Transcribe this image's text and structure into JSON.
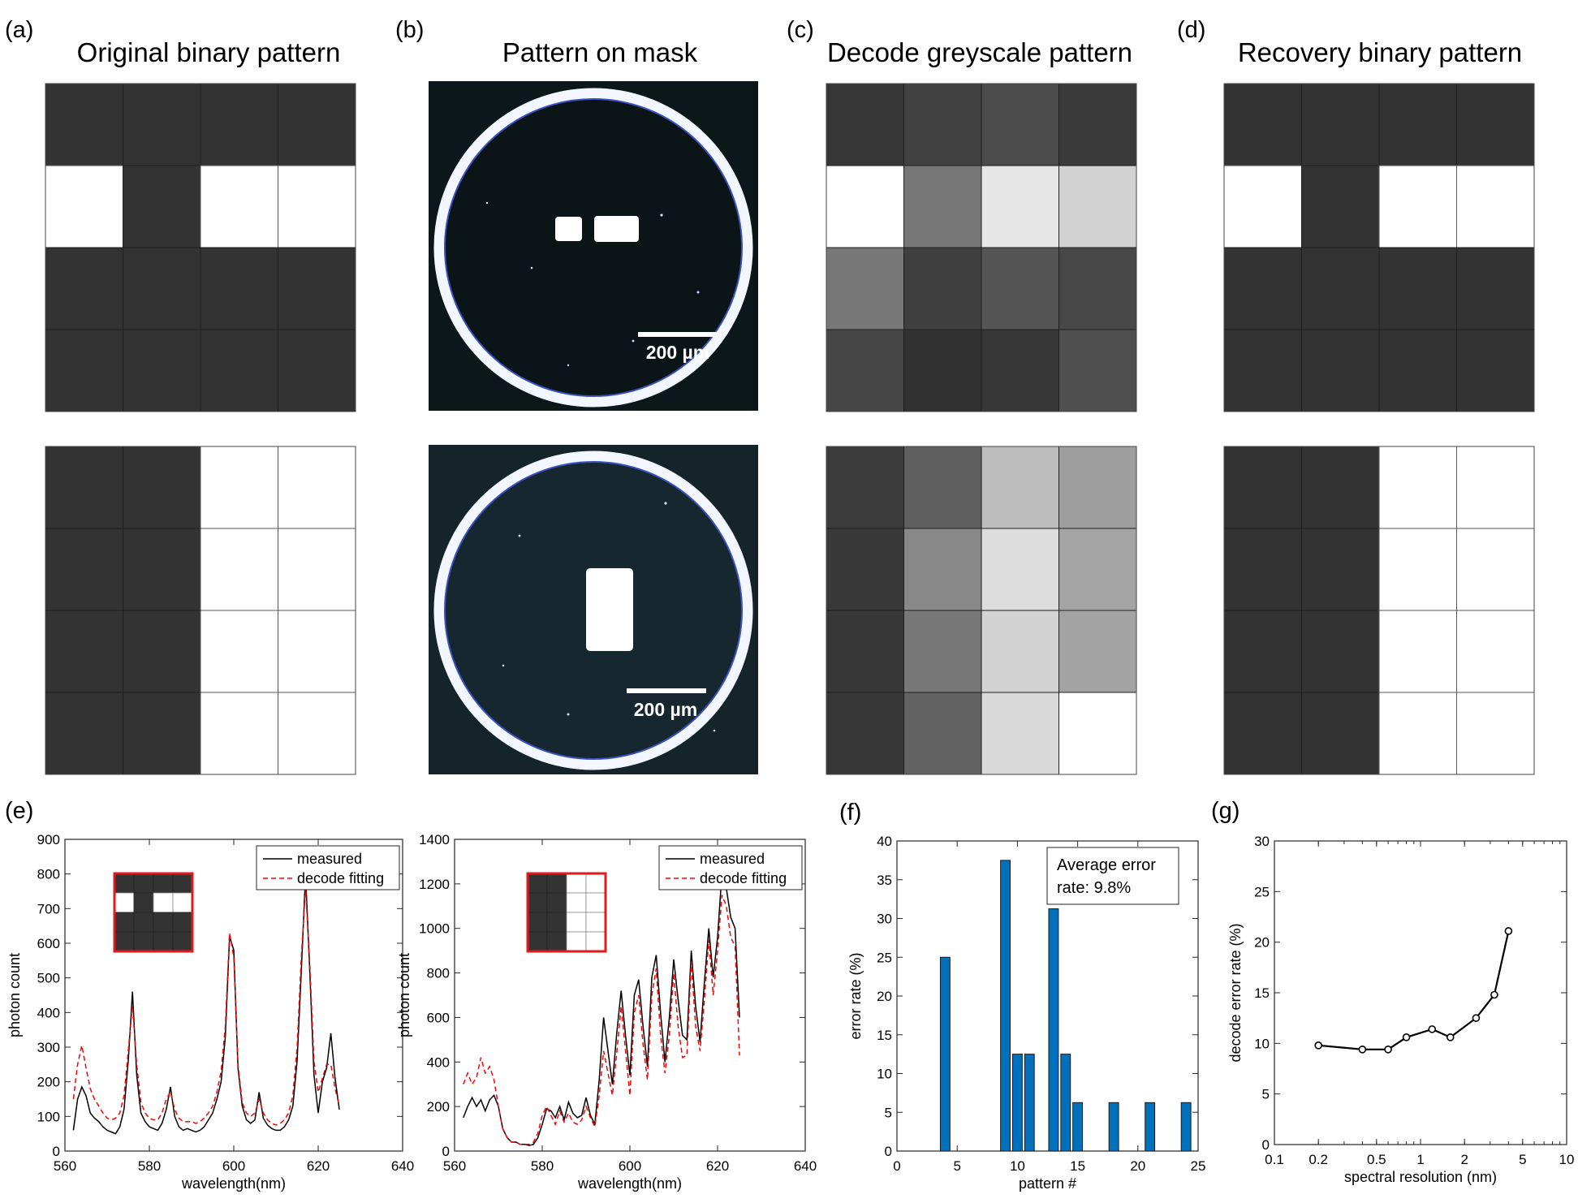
{
  "figure": {
    "panels": [
      {
        "letter": "(a)",
        "title": "Original binary pattern"
      },
      {
        "letter": "(b)",
        "title": "Pattern on mask"
      },
      {
        "letter": "(c)",
        "title": "Decode greyscale pattern"
      },
      {
        "letter": "(d)",
        "title": "Recovery binary pattern"
      }
    ],
    "lower_panels": [
      "(e)",
      "(f)",
      "(g)"
    ],
    "scale_bar_label": "200 µm",
    "colors": {
      "dark_cell": "#333333",
      "bar_blue": "#0072bd",
      "fit_red": "#ff0000",
      "inset_red": "#e31a1c"
    },
    "grids": {
      "original_top": [
        [
          0,
          0,
          0,
          0
        ],
        [
          1,
          0,
          1,
          1
        ],
        [
          0,
          0,
          0,
          0
        ],
        [
          0,
          0,
          0,
          0
        ]
      ],
      "original_bottom": [
        [
          0,
          0,
          1,
          1
        ],
        [
          0,
          0,
          1,
          1
        ],
        [
          0,
          0,
          1,
          1
        ],
        [
          0,
          0,
          1,
          1
        ]
      ],
      "decode_top": [
        [
          "#363636",
          "#414141",
          "#4b4b4b",
          "#3a3a3a"
        ],
        [
          "#ffffff",
          "#777777",
          "#e6e6e6",
          "#d2d2d2"
        ],
        [
          "#787878",
          "#3f3f3f",
          "#555555",
          "#484848"
        ],
        [
          "#464646",
          "#323232",
          "#373737",
          "#4f4f4f"
        ]
      ],
      "decode_bottom": [
        [
          "#3c3c3c",
          "#5f5f5f",
          "#bdbdbd",
          "#9e9e9e"
        ],
        [
          "#393939",
          "#888888",
          "#dddddd",
          "#a4a4a4"
        ],
        [
          "#373737",
          "#777777",
          "#d3d3d3",
          "#a3a3a3"
        ],
        [
          "#373737",
          "#626262",
          "#d9d9d9",
          "#ffffff"
        ]
      ],
      "recovery_top": [
        [
          0,
          0,
          0,
          0
        ],
        [
          1,
          0,
          1,
          1
        ],
        [
          0,
          0,
          0,
          0
        ],
        [
          0,
          0,
          0,
          0
        ]
      ],
      "recovery_bottom": [
        [
          0,
          0,
          1,
          1
        ],
        [
          0,
          0,
          1,
          1
        ],
        [
          0,
          0,
          1,
          1
        ],
        [
          0,
          0,
          1,
          1
        ]
      ]
    }
  },
  "chart_data": [
    {
      "panel": "(e)",
      "type": "line",
      "xlabel": "wavelength(nm)",
      "ylabel": "photon count",
      "xlim": [
        560,
        640
      ],
      "ylim": [
        0,
        900
      ],
      "xticks": [
        "560",
        "580",
        "600",
        "620",
        "640"
      ],
      "yticks": [
        "0",
        "100",
        "200",
        "300",
        "400",
        "500",
        "600",
        "700",
        "800",
        "900"
      ],
      "legend": [
        "measured",
        "decode fitting"
      ],
      "series": [
        {
          "name": "measured",
          "x": [
            562,
            563,
            564,
            565,
            566,
            567,
            568,
            569,
            570,
            571,
            572,
            573,
            574,
            575,
            576,
            577,
            578,
            579,
            580,
            581,
            582,
            583,
            584,
            585,
            586,
            587,
            588,
            589,
            590,
            591,
            592,
            593,
            594,
            595,
            596,
            597,
            598,
            599,
            600,
            601,
            602,
            603,
            604,
            605,
            606,
            607,
            608,
            609,
            610,
            611,
            612,
            613,
            614,
            615,
            616,
            617,
            618,
            619,
            620,
            621,
            622,
            623,
            624,
            625
          ],
          "y": [
            60,
            150,
            185,
            160,
            110,
            95,
            85,
            70,
            60,
            55,
            50,
            70,
            120,
            260,
            460,
            220,
            110,
            85,
            70,
            65,
            60,
            80,
            120,
            185,
            100,
            70,
            60,
            65,
            60,
            55,
            60,
            70,
            90,
            110,
            150,
            200,
            330,
            620,
            580,
            240,
            130,
            90,
            80,
            90,
            170,
            95,
            75,
            65,
            60,
            60,
            70,
            90,
            130,
            260,
            520,
            800,
            520,
            220,
            110,
            200,
            240,
            340,
            210,
            120
          ]
        },
        {
          "name": "decode fitting",
          "x": [
            562,
            563,
            564,
            565,
            566,
            567,
            568,
            569,
            570,
            571,
            572,
            573,
            574,
            575,
            576,
            577,
            578,
            579,
            580,
            581,
            582,
            583,
            584,
            585,
            586,
            587,
            588,
            589,
            590,
            591,
            592,
            593,
            594,
            595,
            596,
            597,
            598,
            599,
            600,
            601,
            602,
            603,
            604,
            605,
            606,
            607,
            608,
            609,
            610,
            611,
            612,
            613,
            614,
            615,
            616,
            617,
            618,
            619,
            620,
            621,
            622,
            623,
            624,
            625
          ],
          "y": [
            150,
            250,
            305,
            240,
            180,
            150,
            130,
            110,
            95,
            90,
            95,
            110,
            160,
            290,
            420,
            250,
            140,
            110,
            95,
            90,
            90,
            110,
            150,
            170,
            120,
            95,
            85,
            85,
            85,
            80,
            85,
            95,
            110,
            130,
            170,
            230,
            360,
            630,
            560,
            250,
            140,
            110,
            100,
            110,
            150,
            110,
            90,
            80,
            75,
            80,
            90,
            110,
            160,
            300,
            560,
            760,
            540,
            260,
            170,
            210,
            250,
            250,
            180,
            130
          ]
        }
      ],
      "inset_pattern": [
        [
          0,
          0,
          0,
          0
        ],
        [
          1,
          0,
          1,
          1
        ],
        [
          0,
          0,
          0,
          0
        ],
        [
          0,
          0,
          0,
          0
        ]
      ]
    },
    {
      "panel": "(e)",
      "type": "line",
      "xlabel": "wavelength(nm)",
      "ylabel": "photon count",
      "xlim": [
        560,
        640
      ],
      "ylim": [
        0,
        1400
      ],
      "xticks": [
        "560",
        "580",
        "600",
        "620",
        "640"
      ],
      "yticks": [
        "0",
        "200",
        "400",
        "600",
        "800",
        "1000",
        "1200",
        "1400"
      ],
      "legend": [
        "measured",
        "decode fitting"
      ],
      "series": [
        {
          "name": "measured",
          "x": [
            562,
            563,
            564,
            565,
            566,
            567,
            568,
            569,
            570,
            571,
            572,
            573,
            574,
            575,
            576,
            577,
            578,
            579,
            580,
            581,
            582,
            583,
            584,
            585,
            586,
            587,
            588,
            589,
            590,
            591,
            592,
            593,
            594,
            595,
            596,
            597,
            598,
            599,
            600,
            601,
            602,
            603,
            604,
            605,
            606,
            607,
            608,
            609,
            610,
            611,
            612,
            613,
            614,
            615,
            616,
            617,
            618,
            619,
            620,
            621,
            622,
            623,
            624,
            625
          ],
          "y": [
            150,
            200,
            240,
            200,
            230,
            180,
            230,
            250,
            200,
            100,
            60,
            40,
            40,
            30,
            30,
            25,
            30,
            60,
            120,
            190,
            180,
            150,
            200,
            140,
            220,
            170,
            150,
            160,
            240,
            160,
            120,
            320,
            600,
            450,
            300,
            530,
            720,
            520,
            340,
            700,
            770,
            560,
            380,
            780,
            880,
            620,
            400,
            600,
            860,
            680,
            520,
            500,
            900,
            650,
            490,
            760,
            1000,
            780,
            960,
            1250,
            1180,
            1050,
            1000,
            600
          ]
        },
        {
          "name": "decode fitting",
          "x": [
            562,
            563,
            564,
            565,
            566,
            567,
            568,
            569,
            570,
            571,
            572,
            573,
            574,
            575,
            576,
            577,
            578,
            579,
            580,
            581,
            582,
            583,
            584,
            585,
            586,
            587,
            588,
            589,
            590,
            591,
            592,
            593,
            594,
            595,
            596,
            597,
            598,
            599,
            600,
            601,
            602,
            603,
            604,
            605,
            606,
            607,
            608,
            609,
            610,
            611,
            612,
            613,
            614,
            615,
            616,
            617,
            618,
            619,
            620,
            621,
            622,
            623,
            624,
            625
          ],
          "y": [
            300,
            350,
            300,
            330,
            420,
            350,
            380,
            320,
            200,
            100,
            60,
            40,
            40,
            30,
            30,
            30,
            40,
            80,
            160,
            200,
            160,
            120,
            180,
            130,
            170,
            130,
            120,
            140,
            200,
            150,
            110,
            250,
            450,
            350,
            250,
            440,
            650,
            450,
            250,
            620,
            700,
            480,
            320,
            700,
            820,
            520,
            350,
            520,
            800,
            560,
            420,
            430,
            850,
            560,
            450,
            680,
            950,
            700,
            900,
            1150,
            1100,
            960,
            920,
            430
          ]
        }
      ],
      "inset_pattern": [
        [
          0,
          0,
          1,
          1
        ],
        [
          0,
          0,
          1,
          1
        ],
        [
          0,
          0,
          1,
          1
        ],
        [
          0,
          0,
          1,
          1
        ]
      ]
    },
    {
      "panel": "(f)",
      "type": "bar",
      "xlabel": "pattern #",
      "ylabel": "error rate (%)",
      "xlim": [
        0,
        25
      ],
      "ylim": [
        0,
        40
      ],
      "xticks": [
        "0",
        "5",
        "10",
        "15",
        "20",
        "25"
      ],
      "yticks": [
        "0",
        "5",
        "10",
        "15",
        "20",
        "25",
        "30",
        "35",
        "40"
      ],
      "annotation": [
        "Average error",
        "rate: 9.8%"
      ],
      "x": [
        4,
        9,
        10,
        11,
        13,
        14,
        15,
        18,
        21,
        24
      ],
      "values": [
        25,
        37.5,
        12.5,
        12.5,
        31.25,
        12.5,
        6.25,
        6.25,
        6.25,
        6.25
      ]
    },
    {
      "panel": "(g)",
      "type": "line",
      "xscale": "log",
      "xlabel": "spectral resolution (nm)",
      "ylabel": "decode error rate (%)",
      "xlim": [
        0.1,
        10
      ],
      "ylim": [
        0,
        30
      ],
      "xtick_values": [
        0.1,
        0.2,
        0.5,
        1,
        2,
        5,
        10
      ],
      "xticks": [
        "0.1",
        "0.2",
        "0.5",
        "1",
        "2",
        "5",
        "10"
      ],
      "yticks": [
        "0",
        "5",
        "10",
        "15",
        "20",
        "25",
        "30"
      ],
      "x": [
        0.2,
        0.4,
        0.6,
        0.8,
        1.2,
        1.6,
        2.4,
        3.2,
        4.0
      ],
      "y": [
        9.8,
        9.4,
        9.4,
        10.6,
        11.4,
        10.6,
        12.5,
        14.8,
        21.1
      ]
    }
  ]
}
